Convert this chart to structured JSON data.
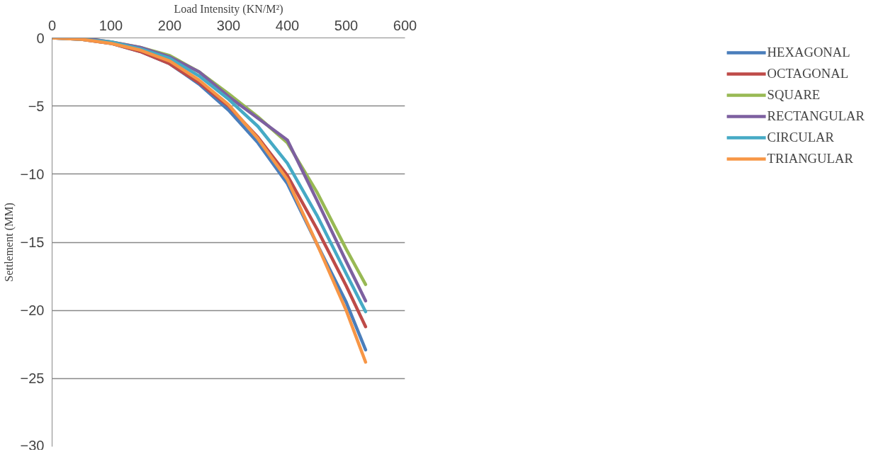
{
  "chart_data": {
    "type": "line",
    "xlabel": "Load Intensity (KN/M²)",
    "ylabel": "Settlement (MM)",
    "x": [
      0,
      50,
      100,
      150,
      200,
      250,
      300,
      350,
      400,
      450,
      500,
      533
    ],
    "xlim": [
      0,
      600
    ],
    "xticks": [
      0,
      100,
      200,
      300,
      400,
      500,
      600
    ],
    "ylim": [
      -30,
      0
    ],
    "yticks": [
      -30,
      -25,
      -20,
      -15,
      -10,
      -5,
      0
    ],
    "grid": "y",
    "legend": "right",
    "marker": "none",
    "line_style": "solid",
    "series": [
      {
        "name": "HEXAGONAL",
        "color": "#4a7ebb",
        "values": [
          0,
          -0.1,
          -0.4,
          -1.0,
          -1.9,
          -3.4,
          -5.3,
          -7.7,
          -10.7,
          -15.1,
          -19.4,
          -22.9
        ]
      },
      {
        "name": "OCTAGONAL",
        "color": "#be4b48",
        "values": [
          0,
          -0.1,
          -0.4,
          -1.0,
          -1.9,
          -3.3,
          -5.0,
          -7.3,
          -10.1,
          -14.0,
          -18.2,
          -21.2
        ]
      },
      {
        "name": "SQUARE",
        "color": "#98b954",
        "values": [
          0,
          0,
          -0.3,
          -0.7,
          -1.3,
          -2.5,
          -4.1,
          -5.8,
          -7.7,
          -11.3,
          -15.5,
          -18.1
        ]
      },
      {
        "name": "RECTANGULAR",
        "color": "#7d60a0",
        "values": [
          0,
          0,
          -0.3,
          -0.7,
          -1.4,
          -2.5,
          -4.3,
          -5.9,
          -7.5,
          -11.9,
          -16.4,
          -19.3
        ]
      },
      {
        "name": "CIRCULAR",
        "color": "#46aac5",
        "values": [
          0,
          -0.1,
          -0.3,
          -0.8,
          -1.5,
          -2.8,
          -4.5,
          -6.5,
          -9.2,
          -13.0,
          -17.3,
          -20.1
        ]
      },
      {
        "name": "TRIANGULAR",
        "color": "#f79646",
        "values": [
          0,
          -0.1,
          -0.4,
          -0.9,
          -1.7,
          -3.1,
          -4.9,
          -7.4,
          -10.4,
          -15.1,
          -20.0,
          -23.8
        ]
      }
    ]
  }
}
